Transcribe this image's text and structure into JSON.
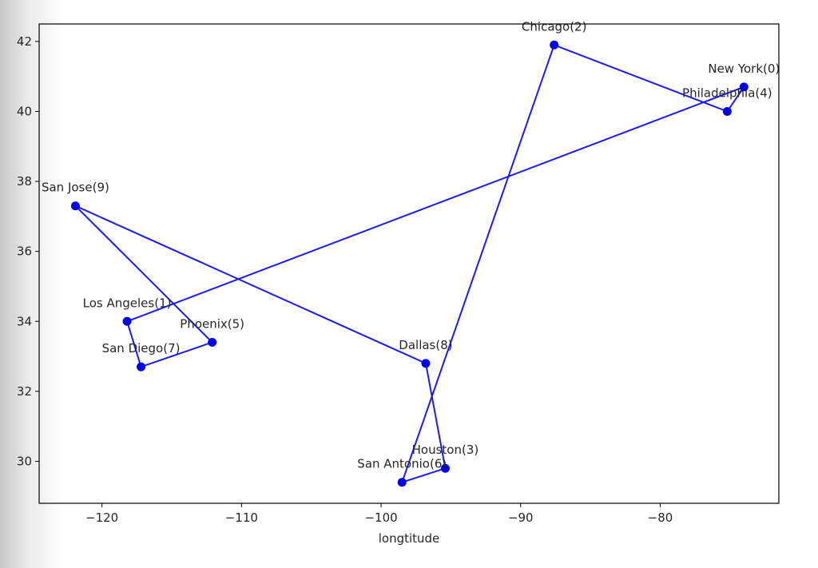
{
  "chart_data": {
    "type": "line",
    "title": "",
    "xlabel": "longtitude",
    "ylabel": "",
    "xlim": [
      -124.5,
      -71.5
    ],
    "ylim": [
      28.8,
      42.5
    ],
    "x_ticks": [
      -120,
      -110,
      -100,
      -90,
      -80
    ],
    "x_tick_labels": [
      "−120",
      "−110",
      "−100",
      "−90",
      "−80"
    ],
    "y_ticks": [
      30,
      32,
      34,
      36,
      38,
      40,
      42
    ],
    "y_tick_labels": [
      "30",
      "32",
      "34",
      "36",
      "38",
      "40",
      "42"
    ],
    "grid": false,
    "line_color": "#1a1aff",
    "marker_color": "#0000ee",
    "points": [
      {
        "label": "New York(0)",
        "x": -74.0,
        "y": 40.7
      },
      {
        "label": "Los Angeles(1)",
        "x": -118.2,
        "y": 34.0
      },
      {
        "label": "Chicago(2)",
        "x": -87.6,
        "y": 41.9
      },
      {
        "label": "Houston(3)",
        "x": -95.4,
        "y": 29.8
      },
      {
        "label": "Philadelphia(4)",
        "x": -75.2,
        "y": 40.0
      },
      {
        "label": "Phoenix(5)",
        "x": -112.1,
        "y": 33.4
      },
      {
        "label": "San Antonio(6)",
        "x": -98.5,
        "y": 29.4
      },
      {
        "label": "San Diego(7)",
        "x": -117.2,
        "y": 32.7
      },
      {
        "label": "Dallas(8)",
        "x": -96.8,
        "y": 32.8
      },
      {
        "label": "San Jose(9)",
        "x": -121.9,
        "y": 37.3
      }
    ],
    "route": [
      0,
      4,
      2,
      6,
      3,
      8,
      9,
      5,
      7,
      1,
      0
    ]
  }
}
